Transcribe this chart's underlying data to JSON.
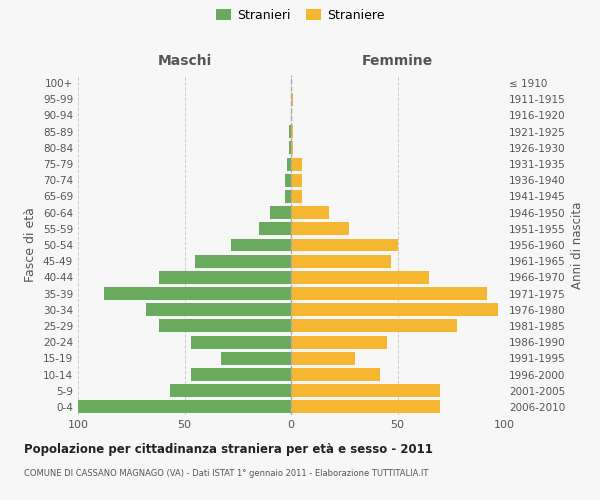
{
  "age_groups": [
    "100+",
    "95-99",
    "90-94",
    "85-89",
    "80-84",
    "75-79",
    "70-74",
    "65-69",
    "60-64",
    "55-59",
    "50-54",
    "45-49",
    "40-44",
    "35-39",
    "30-34",
    "25-29",
    "20-24",
    "15-19",
    "10-14",
    "5-9",
    "0-4"
  ],
  "birth_years": [
    "≤ 1910",
    "1911-1915",
    "1916-1920",
    "1921-1925",
    "1926-1930",
    "1931-1935",
    "1936-1940",
    "1941-1945",
    "1946-1950",
    "1951-1955",
    "1956-1960",
    "1961-1965",
    "1966-1970",
    "1971-1975",
    "1976-1980",
    "1981-1985",
    "1986-1990",
    "1991-1995",
    "1996-2000",
    "2001-2005",
    "2006-2010"
  ],
  "maschi": [
    0,
    0,
    0,
    1,
    1,
    2,
    3,
    3,
    10,
    15,
    28,
    45,
    62,
    88,
    68,
    62,
    47,
    33,
    47,
    57,
    100
  ],
  "femmine": [
    0,
    1,
    0,
    1,
    1,
    5,
    5,
    5,
    18,
    27,
    50,
    47,
    65,
    92,
    97,
    78,
    45,
    30,
    42,
    70,
    70
  ],
  "color_maschi": "#6aaa5e",
  "color_femmine": "#f5b731",
  "title": "Popolazione per cittadinanza straniera per età e sesso - 2011",
  "subtitle": "COMUNE DI CASSANO MAGNAGO (VA) - Dati ISTAT 1° gennaio 2011 - Elaborazione TUTTITALIA.IT",
  "ylabel_left": "Fasce di età",
  "ylabel_right": "Anni di nascita",
  "label_maschi": "Maschi",
  "label_femmine": "Femmine",
  "legend_maschi": "Stranieri",
  "legend_femmine": "Straniere",
  "xlim": 100,
  "background_color": "#f7f7f7",
  "grid_color": "#cccccc",
  "text_color": "#555555"
}
